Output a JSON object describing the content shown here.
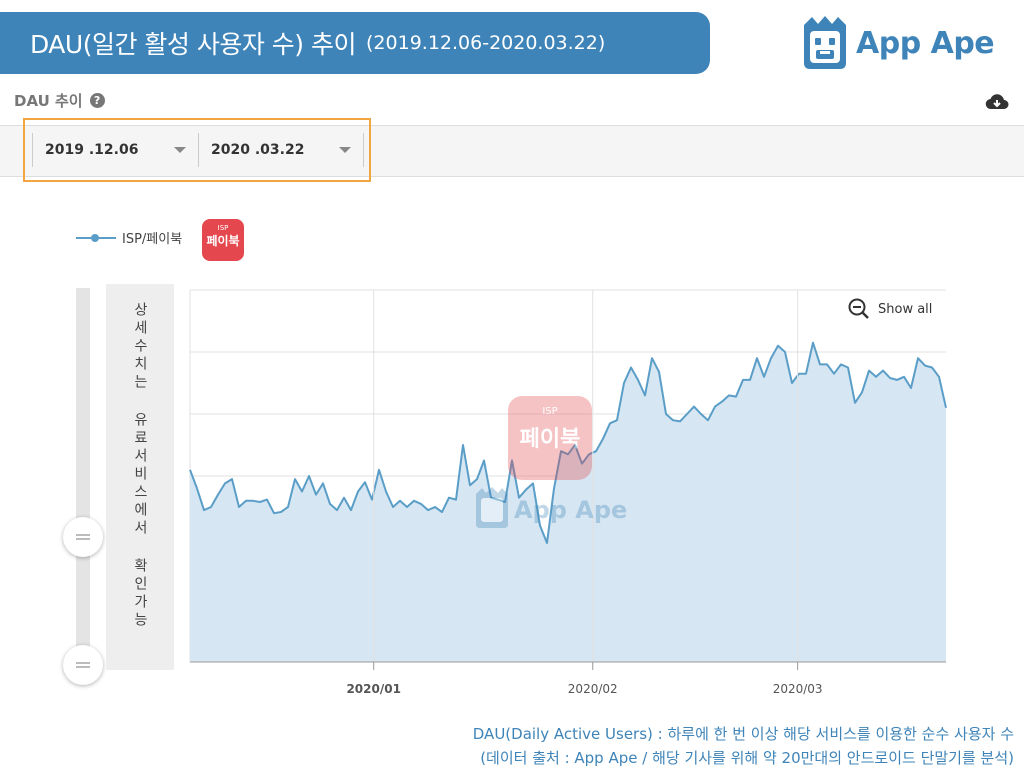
{
  "header": {
    "title": "DAU(일간 활성 사용자 수) 추이",
    "range": "(2019.12.06-2020.03.22)"
  },
  "brand": {
    "name": "App Ape",
    "color": "#3f84b8"
  },
  "section": {
    "title": "DAU 추이",
    "help_icon": "?"
  },
  "date_picker": {
    "start": "2019 .12.06",
    "end": "2020 .03.22"
  },
  "legend": {
    "badge_top": "ISP",
    "badge_main": "페이북",
    "badge_color": "#e5474e"
  },
  "side_note": "상세수치는 유료서비스에서 확인가능",
  "controls": {
    "show_all": "Show all"
  },
  "watermark": {
    "badge_top": "ISP",
    "badge_main": "페이북",
    "brand": "App Ape"
  },
  "footnote": {
    "line1": "DAU(Daily Active Users) : 하루에 한 번 이상 해당 서비스를 이용한 순수 사용자 수",
    "line2": "(데이터 출처 : App Ape / 해당 기사를 위해 약 20만대의 안드로이드 단말기를 분석)"
  },
  "chart_data": {
    "type": "area",
    "x_start": "2019-12-06",
    "x_end": "2020-03-22",
    "x_ticks": [
      {
        "label": "2020/01",
        "date": "2020-01-01",
        "bold": true
      },
      {
        "label": "2020/02",
        "date": "2020-02-01",
        "bold": false
      },
      {
        "label": "2020/03",
        "date": "2020-03-01",
        "bold": false
      }
    ],
    "ylim": [
      0,
      6
    ],
    "y_grid": [
      1,
      2,
      3,
      4,
      5,
      6
    ],
    "grid": true,
    "y_labels_hidden": true,
    "line_color": "#5a9ec8",
    "fill_color": "#d6e6f2",
    "series": [
      {
        "name": "ISP/페이북",
        "values": [
          3.1,
          2.8,
          2.45,
          2.5,
          2.7,
          2.88,
          2.95,
          2.5,
          2.6,
          2.6,
          2.58,
          2.62,
          2.4,
          2.42,
          2.5,
          2.95,
          2.75,
          3.0,
          2.7,
          2.88,
          2.55,
          2.45,
          2.65,
          2.45,
          2.75,
          2.9,
          2.62,
          3.1,
          2.75,
          2.5,
          2.6,
          2.5,
          2.6,
          2.55,
          2.45,
          2.5,
          2.42,
          2.65,
          2.62,
          3.5,
          2.85,
          2.95,
          3.25,
          2.65,
          2.62,
          2.58,
          3.25,
          2.65,
          2.78,
          2.88,
          2.2,
          1.92,
          2.8,
          3.4,
          3.35,
          3.5,
          3.2,
          3.35,
          3.4,
          3.6,
          3.85,
          3.9,
          4.5,
          4.75,
          4.55,
          4.3,
          4.9,
          4.68,
          4.0,
          3.9,
          3.88,
          4.0,
          4.12,
          4.0,
          3.9,
          4.12,
          4.2,
          4.3,
          4.28,
          4.55,
          4.55,
          4.9,
          4.6,
          4.9,
          5.1,
          5.0,
          4.5,
          4.65,
          4.65,
          5.15,
          4.8,
          4.8,
          4.65,
          4.8,
          4.75,
          4.18,
          4.35,
          4.7,
          4.6,
          4.7,
          4.58,
          4.55,
          4.6,
          4.42,
          4.9,
          4.78,
          4.75,
          4.6,
          4.1
        ]
      }
    ]
  }
}
